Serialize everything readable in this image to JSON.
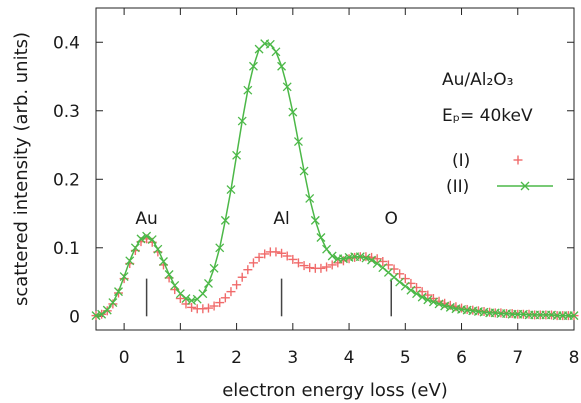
{
  "chart_data": {
    "type": "scatter",
    "xlabel": "electron energy loss (eV)",
    "ylabel": "scattered intensity (arb. units)",
    "xlim": [
      -0.5,
      8
    ],
    "ylim": [
      -0.02,
      0.45
    ],
    "xticks": [
      0,
      1,
      2,
      3,
      4,
      5,
      6,
      7,
      8
    ],
    "yticks": [
      0,
      0.1,
      0.2,
      0.3,
      0.4
    ],
    "xtick_labels": [
      "0",
      "1",
      "2",
      "3",
      "4",
      "5",
      "6",
      "7",
      "8"
    ],
    "ytick_labels": [
      "0",
      "0.1",
      "0.2",
      "0.3",
      "0.4"
    ],
    "grid": false,
    "legend_position": "right",
    "annotation_block": {
      "sample": "Au/Al₂O₃",
      "energy": "Eₚ= 40keV"
    },
    "element_markers": [
      {
        "label": "Au",
        "x": 0.4
      },
      {
        "label": "Al",
        "x": 2.8
      },
      {
        "label": "O",
        "x": 4.75
      }
    ],
    "series": [
      {
        "name": "(I)",
        "color": "#f06a6a",
        "marker": "plus",
        "line": false,
        "x": [
          -0.5,
          -0.4,
          -0.3,
          -0.2,
          -0.1,
          0.0,
          0.1,
          0.2,
          0.3,
          0.4,
          0.5,
          0.6,
          0.7,
          0.8,
          0.9,
          1.0,
          1.1,
          1.2,
          1.3,
          1.4,
          1.5,
          1.6,
          1.7,
          1.8,
          1.9,
          2.0,
          2.1,
          2.2,
          2.3,
          2.4,
          2.5,
          2.6,
          2.7,
          2.8,
          2.9,
          3.0,
          3.1,
          3.2,
          3.3,
          3.4,
          3.5,
          3.6,
          3.7,
          3.8,
          3.9,
          4.0,
          4.1,
          4.2,
          4.3,
          4.4,
          4.5,
          4.6,
          4.7,
          4.8,
          4.9,
          5.0,
          5.1,
          5.2,
          5.3,
          5.4,
          5.5,
          5.6,
          5.7,
          5.8,
          5.9,
          6.0,
          6.1,
          6.2,
          6.3,
          6.4,
          6.5,
          6.6,
          6.7,
          6.8,
          6.9,
          7.0,
          7.1,
          7.2,
          7.3,
          7.4,
          7.5,
          7.6,
          7.7,
          7.8,
          7.9,
          8.0
        ],
        "values": [
          0.001,
          0.003,
          0.008,
          0.018,
          0.034,
          0.055,
          0.077,
          0.096,
          0.109,
          0.113,
          0.108,
          0.094,
          0.075,
          0.056,
          0.039,
          0.026,
          0.018,
          0.013,
          0.011,
          0.011,
          0.012,
          0.015,
          0.02,
          0.027,
          0.036,
          0.046,
          0.057,
          0.068,
          0.078,
          0.086,
          0.091,
          0.094,
          0.094,
          0.092,
          0.088,
          0.083,
          0.078,
          0.074,
          0.071,
          0.07,
          0.07,
          0.072,
          0.075,
          0.078,
          0.081,
          0.084,
          0.086,
          0.087,
          0.087,
          0.086,
          0.084,
          0.08,
          0.075,
          0.069,
          0.062,
          0.055,
          0.048,
          0.042,
          0.036,
          0.031,
          0.026,
          0.022,
          0.019,
          0.016,
          0.014,
          0.012,
          0.01,
          0.009,
          0.008,
          0.007,
          0.006,
          0.005,
          0.005,
          0.004,
          0.004,
          0.003,
          0.003,
          0.003,
          0.002,
          0.002,
          0.002,
          0.002,
          0.001,
          0.001,
          0.001,
          0.001
        ]
      },
      {
        "name": "(II)",
        "color": "#4cb848",
        "marker": "x",
        "line": true,
        "x": [
          -0.5,
          -0.4,
          -0.3,
          -0.2,
          -0.1,
          0.0,
          0.1,
          0.2,
          0.3,
          0.4,
          0.5,
          0.6,
          0.7,
          0.8,
          0.9,
          1.0,
          1.1,
          1.2,
          1.3,
          1.4,
          1.5,
          1.6,
          1.7,
          1.8,
          1.9,
          2.0,
          2.1,
          2.2,
          2.3,
          2.4,
          2.5,
          2.6,
          2.7,
          2.8,
          2.9,
          3.0,
          3.1,
          3.2,
          3.3,
          3.4,
          3.5,
          3.6,
          3.7,
          3.8,
          3.9,
          4.0,
          4.1,
          4.2,
          4.3,
          4.4,
          4.5,
          4.6,
          4.7,
          4.8,
          4.9,
          5.0,
          5.1,
          5.2,
          5.3,
          5.4,
          5.5,
          5.6,
          5.7,
          5.8,
          5.9,
          6.0,
          6.1,
          6.2,
          6.3,
          6.4,
          6.5,
          6.6,
          6.7,
          6.8,
          6.9,
          7.0,
          7.1,
          7.2,
          7.3,
          7.4,
          7.5,
          7.6,
          7.7,
          7.8,
          7.9,
          8.0
        ],
        "values": [
          0.001,
          0.003,
          0.009,
          0.02,
          0.036,
          0.058,
          0.081,
          0.1,
          0.113,
          0.117,
          0.112,
          0.098,
          0.08,
          0.061,
          0.045,
          0.033,
          0.026,
          0.023,
          0.025,
          0.033,
          0.048,
          0.07,
          0.1,
          0.14,
          0.185,
          0.235,
          0.285,
          0.33,
          0.365,
          0.39,
          0.398,
          0.397,
          0.386,
          0.365,
          0.335,
          0.298,
          0.255,
          0.212,
          0.172,
          0.14,
          0.115,
          0.098,
          0.088,
          0.084,
          0.084,
          0.086,
          0.087,
          0.087,
          0.085,
          0.082,
          0.077,
          0.071,
          0.064,
          0.057,
          0.05,
          0.044,
          0.038,
          0.033,
          0.028,
          0.024,
          0.021,
          0.018,
          0.015,
          0.013,
          0.011,
          0.01,
          0.009,
          0.008,
          0.007,
          0.006,
          0.005,
          0.005,
          0.004,
          0.004,
          0.003,
          0.003,
          0.003,
          0.002,
          0.002,
          0.002,
          0.002,
          0.002,
          0.001,
          0.001,
          0.001,
          0.001
        ]
      }
    ]
  }
}
